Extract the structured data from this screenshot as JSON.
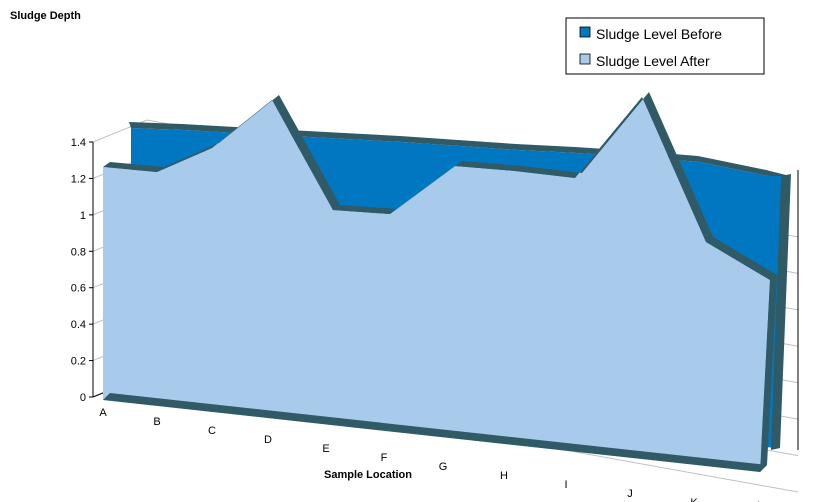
{
  "chart_data": {
    "type": "area",
    "ylabel": "Sludge Depth",
    "xlabel": "Sample Location",
    "categories": [
      "A",
      "B",
      "C",
      "D",
      "E",
      "F",
      "G",
      "H",
      "I",
      "J",
      "K",
      "L"
    ],
    "ylim": [
      0,
      1.4
    ],
    "yticks": [
      "0",
      "0.2",
      "0.4",
      "0.6",
      "0.8",
      "1",
      "1.2",
      "1.4"
    ],
    "series": [
      {
        "name": "Sludge Level Before",
        "values": [
          1.05,
          1.05,
          1.05,
          1.05,
          1.05,
          1.05,
          1.05,
          1.05,
          1.05,
          1.05,
          1.05,
          1.05
        ]
      },
      {
        "name": "Sludge Level After",
        "values": [
          0.9,
          0.9,
          0.98,
          1.15,
          0.75,
          0.75,
          0.91,
          0.92,
          0.95,
          1.18,
          0.63,
          0.53
        ]
      }
    ],
    "legend_position": "top-right",
    "grid": true,
    "view": "3d"
  },
  "colors": {
    "before_fill": "#0077C0",
    "after_fill": "#A9CBEB",
    "edge": "#2F5A66",
    "grid": "#C0C0C0"
  }
}
